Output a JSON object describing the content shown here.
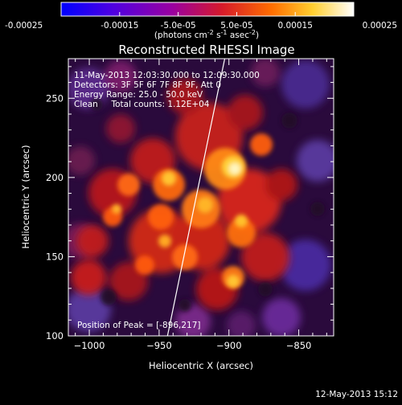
{
  "colorbar": {
    "tick_labels": [
      "-0.00025",
      "-0.00015",
      "-5.0e-05",
      "5.0e-05",
      "0.00015",
      "0.00025"
    ],
    "unit_label": "(photons cm",
    "unit_label_sup1": "-2",
    "unit_label_mid1": " s",
    "unit_label_sup2": "-1",
    "unit_label_mid2": " asec",
    "unit_label_sup3": "-2",
    "unit_label_end": ")",
    "colors": [
      "#0000ff",
      "#5a00e6",
      "#9b00a6",
      "#d81e2a",
      "#ff7a00",
      "#ffd23a",
      "#ffffff"
    ]
  },
  "plot": {
    "title": "Reconstructed RHESSI Image",
    "info_lines": [
      "11-May-2013 12:03:30.000 to 12:09:30.000",
      "Detectors: 3F 5F 6F 7F 8F 9F, Att 0",
      "Energy Range: 25.0 - 50.0 keV",
      "Clean     Total counts: 1.12E+04"
    ],
    "peak_label": "Position of Peak = [-896,217]",
    "xlabel": "Heliocentric X (arcsec)",
    "ylabel": "Heliocentric Y (arcsec)",
    "xlim": [
      -1015,
      -825
    ],
    "ylim": [
      100,
      275
    ],
    "x_ticks": [
      -1000,
      -950,
      -900,
      -850
    ],
    "x_tick_labels": [
      "−1000",
      "−950",
      "−900",
      "−850"
    ],
    "y_ticks": [
      150,
      200,
      250
    ],
    "y_tick_labels": [
      "150",
      "200",
      "250"
    ],
    "limb_line": [
      [
        -944,
        100
      ],
      [
        -903,
        275
      ]
    ],
    "colors": {
      "background": "#000000",
      "image_dark": "#2a0a3a",
      "image_mid": "#c41a1a",
      "image_bright": "#ffe27a",
      "limb": "#ffffff"
    }
  },
  "footer": {
    "timestamp": "12-May-2013 15:12"
  }
}
